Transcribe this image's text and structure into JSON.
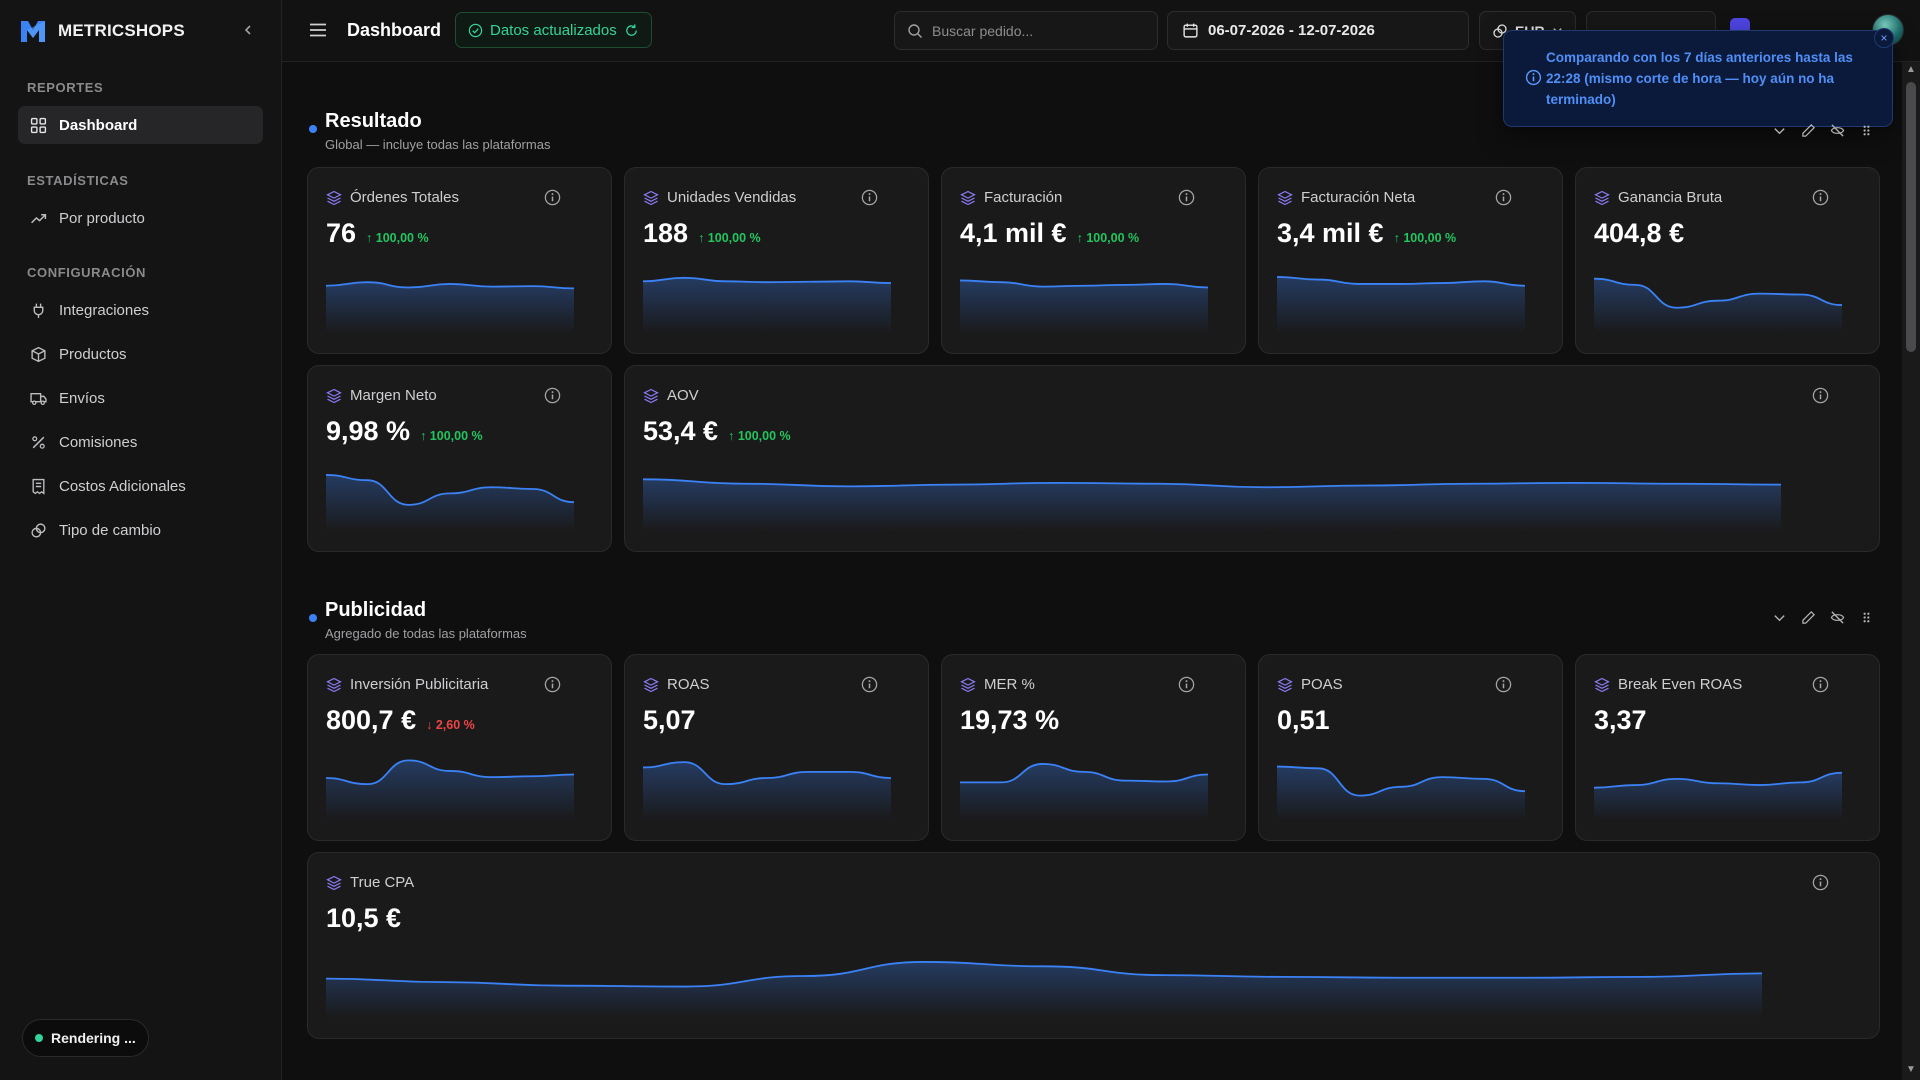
{
  "app": {
    "name": "METRICSHOPS"
  },
  "sidebar": {
    "sections": [
      {
        "label": "REPORTES"
      },
      {
        "label": "ESTADÍSTICAS"
      },
      {
        "label": "CONFIGURACIÓN"
      }
    ],
    "items": [
      {
        "label": "Dashboard",
        "icon": "dashboard-grid-icon",
        "active": true
      },
      {
        "label": "Por producto",
        "icon": "trending-up-icon"
      },
      {
        "label": "Integraciones",
        "icon": "plug-icon"
      },
      {
        "label": "Productos",
        "icon": "box-icon"
      },
      {
        "label": "Envíos",
        "icon": "truck-icon"
      },
      {
        "label": "Comisiones",
        "icon": "percent-icon"
      },
      {
        "label": "Costos Adicionales",
        "icon": "receipt-icon"
      },
      {
        "label": "Tipo de cambio",
        "icon": "exchange-icon"
      }
    ],
    "rendering_label": "Rendering ..."
  },
  "header": {
    "title": "Dashboard",
    "status": "Datos actualizados",
    "search_placeholder": "Buscar pedido...",
    "date_range": "06-07-2026 - 12-07-2026",
    "currency": "EUR"
  },
  "toast": {
    "message": "Comparando con los 7 días anteriores hasta las 22:28 (mismo corte de hora — hoy aún no ha terminado)",
    "close": "×"
  },
  "sections": [
    {
      "title": "Resultado",
      "subtitle": "Global — incluye todas las plataformas",
      "cards": [
        {
          "label": "Órdenes Totales",
          "value": "76",
          "delta": "100,00 %",
          "direction": "up",
          "trend": [
            0.62,
            0.7,
            0.58,
            0.66,
            0.6,
            0.61,
            0.56
          ]
        },
        {
          "label": "Unidades Vendidas",
          "value": "188",
          "delta": "100,00 %",
          "direction": "up",
          "trend": [
            0.72,
            0.8,
            0.72,
            0.7,
            0.71,
            0.72,
            0.68
          ]
        },
        {
          "label": "Facturación",
          "value": "4,1 mil €",
          "delta": "100,00 %",
          "direction": "up",
          "trend": [
            0.74,
            0.7,
            0.6,
            0.62,
            0.64,
            0.66,
            0.58
          ]
        },
        {
          "label": "Facturación Neta",
          "value": "3,4 mil €",
          "delta": "100,00 %",
          "direction": "up",
          "trend": [
            0.82,
            0.76,
            0.66,
            0.66,
            0.68,
            0.72,
            0.62
          ]
        },
        {
          "label": "Ganancia Bruta",
          "value": "404,8 €",
          "delta": "",
          "direction": "none",
          "trend": [
            0.78,
            0.64,
            0.12,
            0.28,
            0.44,
            0.42,
            0.18
          ]
        },
        {
          "label": "Margen Neto",
          "value": "9,98 %",
          "delta": "100,00 %",
          "direction": "up",
          "trend": [
            0.82,
            0.7,
            0.14,
            0.4,
            0.54,
            0.5,
            0.2
          ]
        },
        {
          "label": "AOV",
          "value": "53,4 €",
          "delta": "100,00 %",
          "direction": "up",
          "trend": [
            0.72,
            0.62,
            0.56,
            0.6,
            0.64,
            0.62,
            0.54,
            0.58,
            0.62,
            0.64,
            0.62,
            0.6
          ]
        }
      ]
    },
    {
      "title": "Publicidad",
      "subtitle": "Agregado de todas las plataformas",
      "cards": [
        {
          "label": "Inversión Publicitaria",
          "value": "800,7 €",
          "delta": "2,60 %",
          "direction": "down",
          "trend": [
            0.5,
            0.36,
            0.9,
            0.66,
            0.52,
            0.54,
            0.58
          ]
        },
        {
          "label": "ROAS",
          "value": "5,07",
          "delta": "",
          "direction": "none",
          "trend": [
            0.74,
            0.86,
            0.36,
            0.5,
            0.64,
            0.64,
            0.5
          ]
        },
        {
          "label": "MER %",
          "value": "19,73 %",
          "delta": "",
          "direction": "none",
          "trend": [
            0.4,
            0.4,
            0.82,
            0.64,
            0.44,
            0.42,
            0.58
          ]
        },
        {
          "label": "POAS",
          "value": "0,51",
          "delta": "",
          "direction": "none",
          "trend": [
            0.76,
            0.72,
            0.1,
            0.3,
            0.52,
            0.48,
            0.2
          ]
        },
        {
          "label": "Break Even ROAS",
          "value": "3,37",
          "delta": "",
          "direction": "none",
          "trend": [
            0.28,
            0.34,
            0.48,
            0.38,
            0.34,
            0.4,
            0.62
          ]
        },
        {
          "label": "True CPA",
          "value": "10,5 €",
          "delta": "",
          "direction": "none",
          "trend": [
            0.44,
            0.36,
            0.28,
            0.26,
            0.5,
            0.82,
            0.72,
            0.52,
            0.48,
            0.46,
            0.46,
            0.48,
            0.56
          ]
        }
      ]
    }
  ],
  "colors": {
    "accent": "#3b82f6",
    "positive": "#22c55e",
    "negative": "#ef4444",
    "layer_icon": "#8b7cf6"
  }
}
